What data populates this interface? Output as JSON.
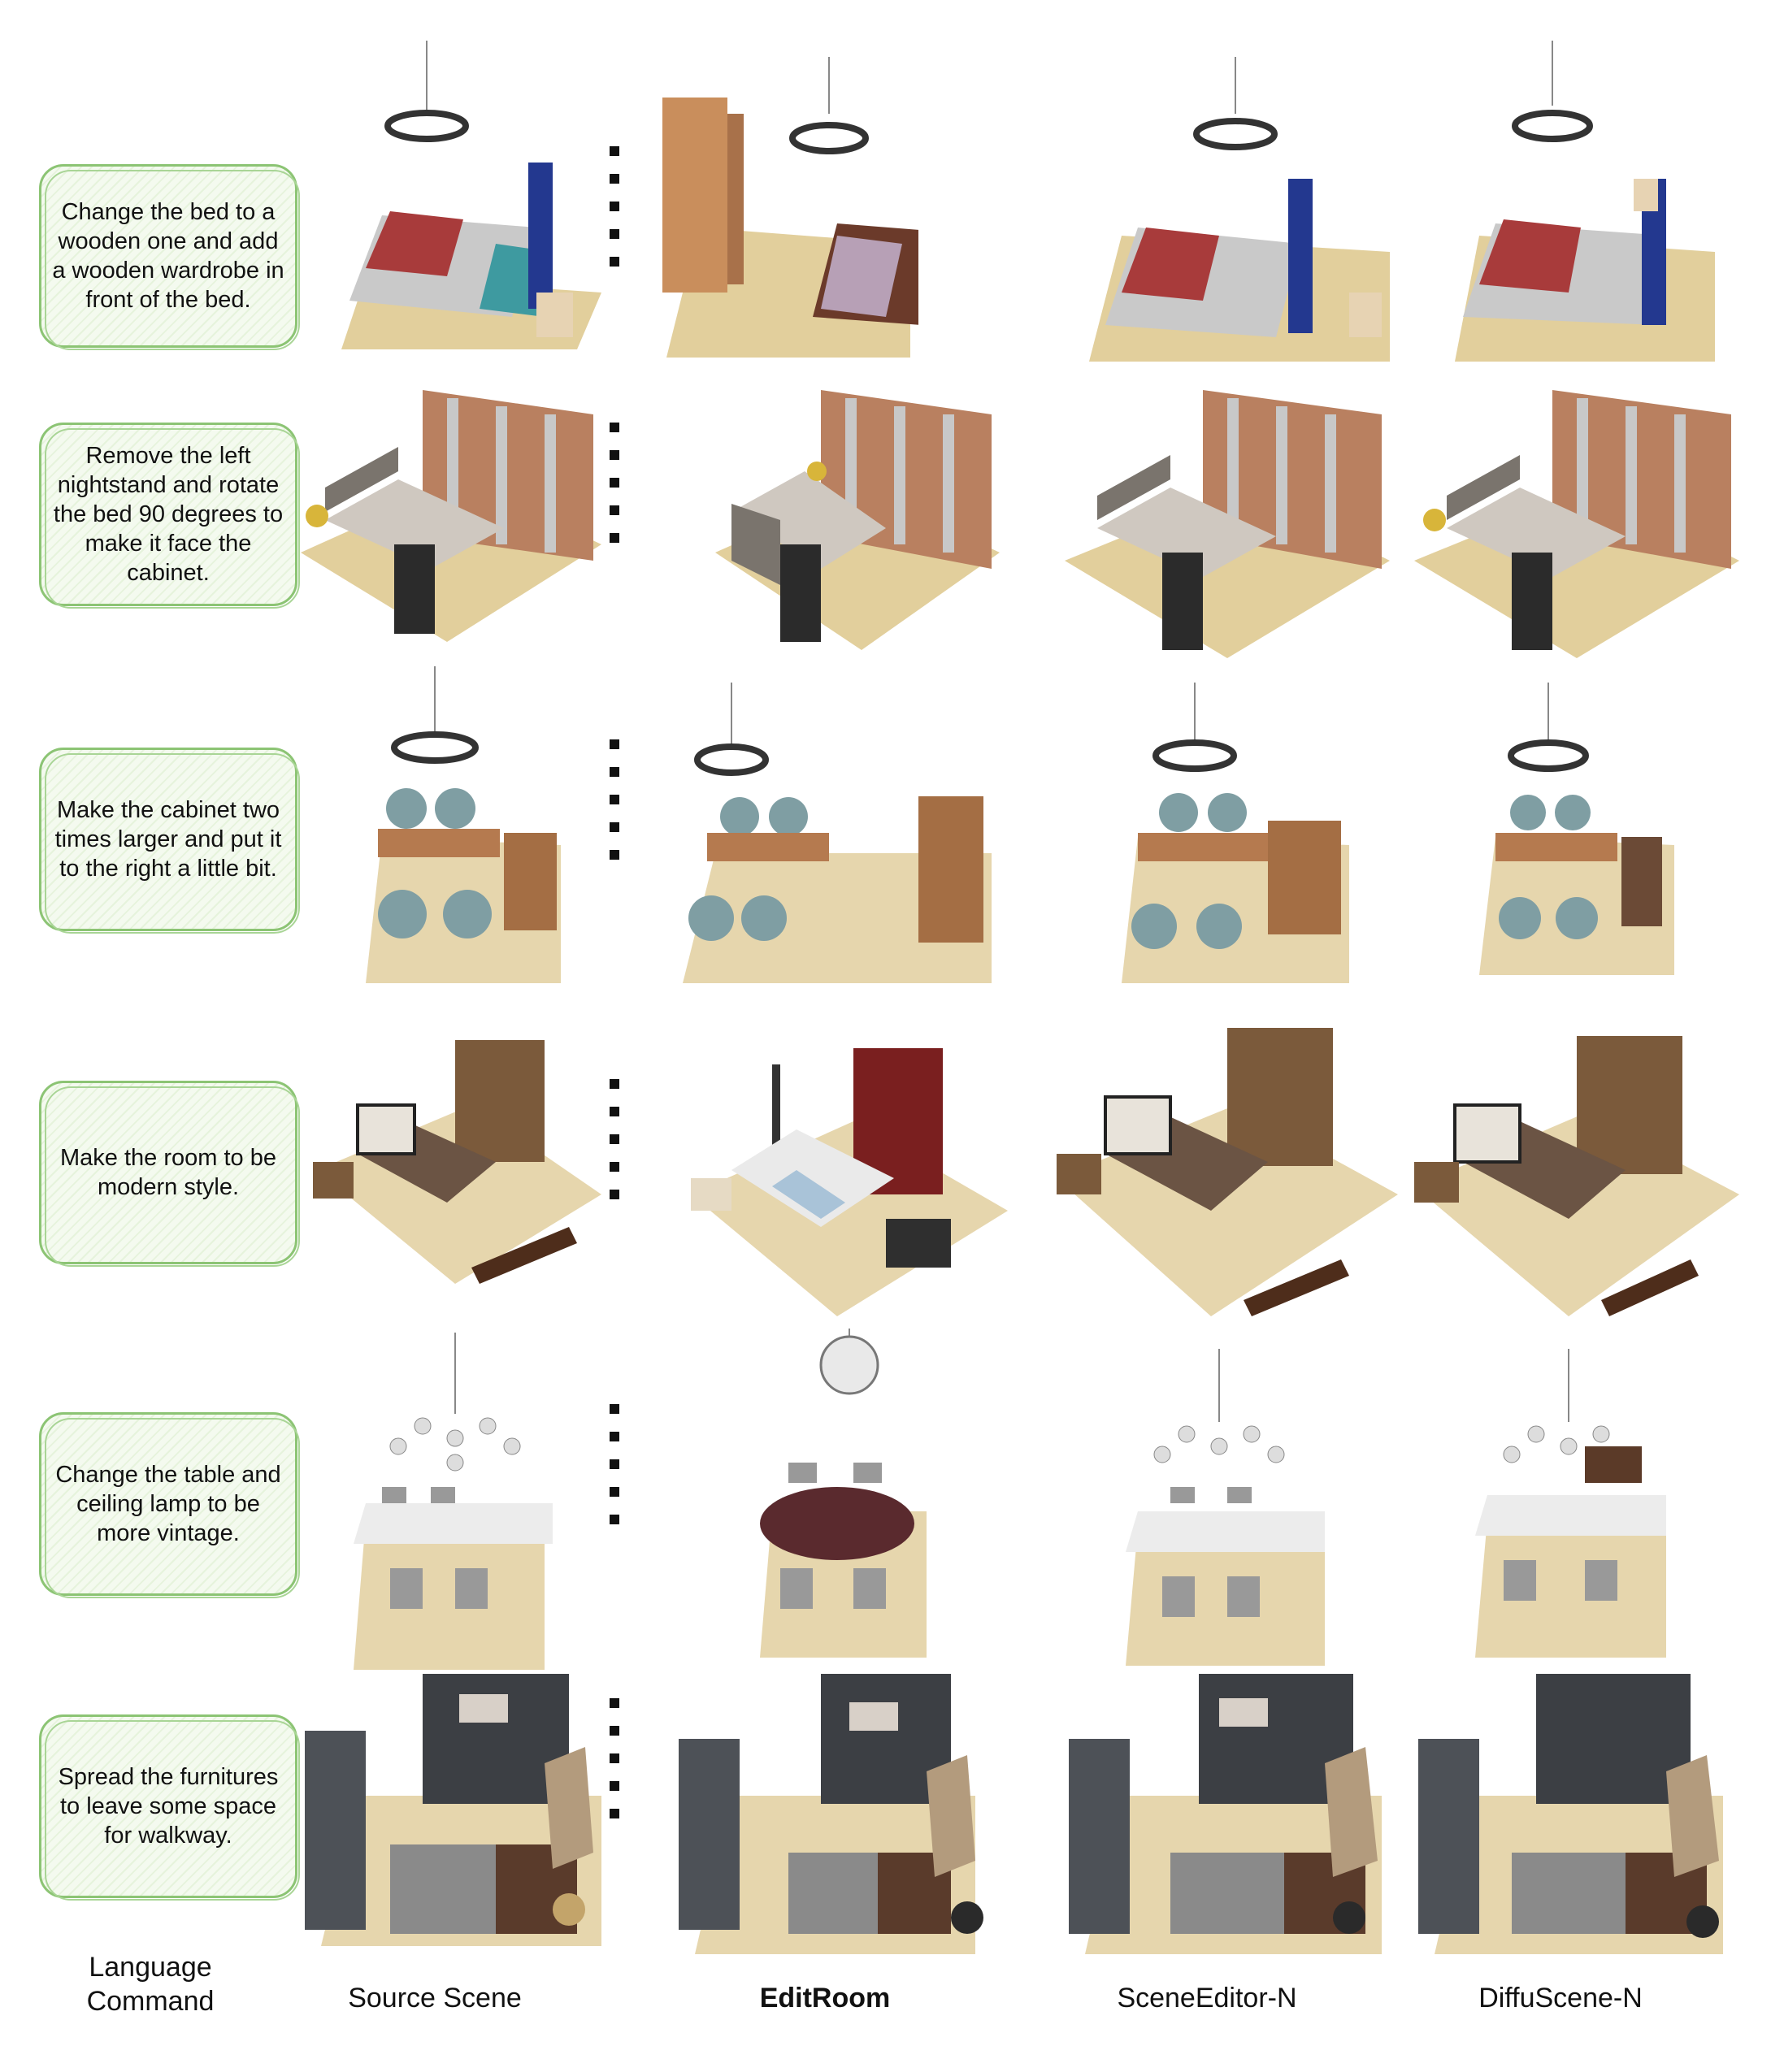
{
  "rows": [
    {
      "command": "Change the bed to a wooden one and add a wooden wardrobe in front of the bed."
    },
    {
      "command": "Remove the left nightstand and rotate the bed 90 degrees to make it face the cabinet."
    },
    {
      "command": "Make the cabinet two times larger and put it to the right a little bit."
    },
    {
      "command": "Make the room to be modern style."
    },
    {
      "command": "Change the table and ceiling lamp to be more vintage."
    },
    {
      "command": "Spread the furnitures to leave some space for walkway."
    }
  ],
  "columns": {
    "language_command": "Language\nCommand",
    "source": "Source Scene",
    "editroom": "EditRoom",
    "sceneeditor": "SceneEditor-N",
    "diffuscene": "DiffuScene-N"
  }
}
